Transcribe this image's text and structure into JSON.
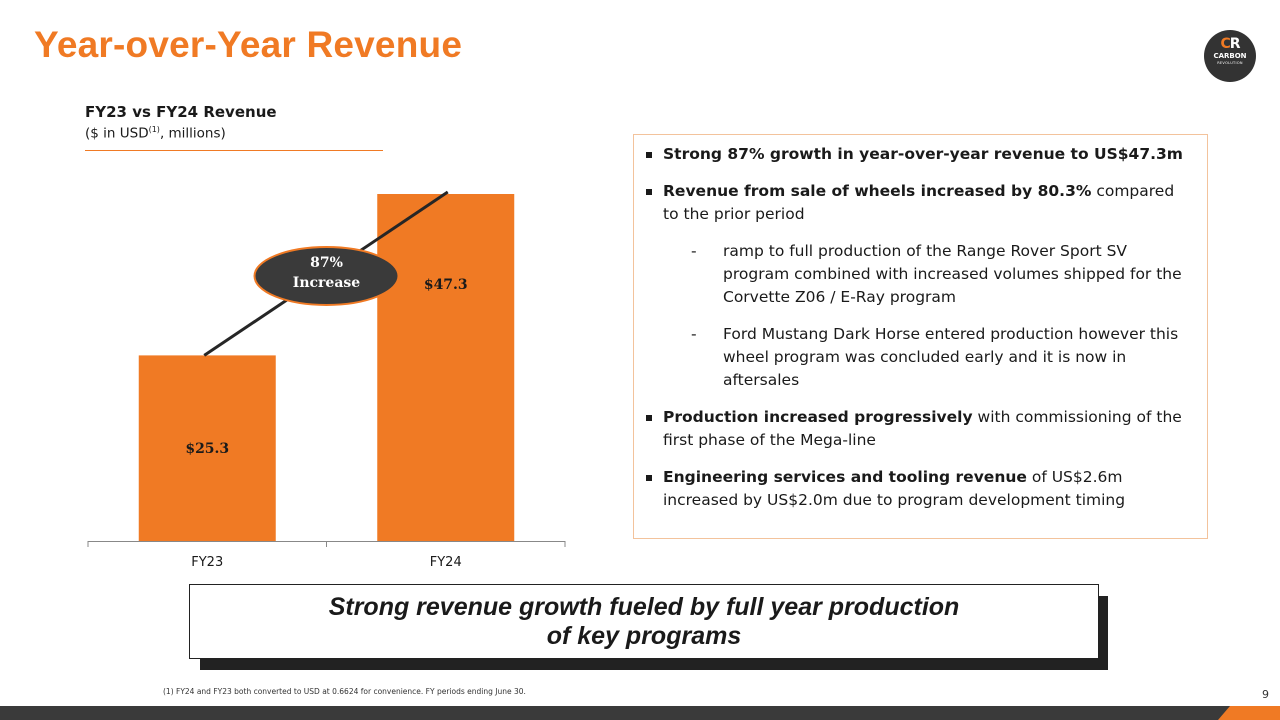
{
  "title": "Year-over-Year Revenue",
  "logo": {
    "mark_left": "C",
    "mark_right": "R",
    "name": "CARBON",
    "sub": "REVOLUTION"
  },
  "chart_data": {
    "type": "bar",
    "title": "FY23 vs FY24 Revenue",
    "subtitle_prefix": "($ in USD",
    "subtitle_sup": "(1)",
    "subtitle_suffix": ", millions)",
    "categories": [
      "FY23",
      "FY24"
    ],
    "values": [
      25.3,
      47.3
    ],
    "data_labels": [
      "$25.3",
      "$47.3"
    ],
    "ylim": [
      0,
      47.3
    ],
    "annotation": {
      "line1": "87%",
      "line2": "Increase"
    },
    "colors": {
      "bar": "#f07a24",
      "annotation_bg": "#3a3a3a",
      "annotation_border": "#f07a24",
      "trend": "#262626"
    }
  },
  "bullets": [
    {
      "bold": "Strong 87% growth in year-over-year revenue to US$47.3m",
      "text": ""
    },
    {
      "bold": "Revenue from sale of wheels increased by 80.3%",
      "text": " compared to the prior period",
      "sub": [
        "ramp to full production of the Range Rover Sport SV program combined with increased volumes shipped for the Corvette Z06 / E-Ray program",
        "Ford Mustang Dark Horse entered production however this wheel program was concluded early and it is now in aftersales"
      ]
    },
    {
      "bold": "Production increased progressively",
      "text": " with commissioning of the first phase of the Mega-line"
    },
    {
      "bold": "Engineering services and tooling revenue",
      "text": " of US$2.6m increased by US$2.0m due to program development timing"
    }
  ],
  "callout": {
    "line1": "Strong revenue growth fueled by full year production",
    "line2": "of key programs"
  },
  "footnote": "(1) FY24 and FY23 both converted to USD at 0.6624 for convenience. FY periods ending June 30.",
  "page_number": "9",
  "accent_color": "#f07a24"
}
